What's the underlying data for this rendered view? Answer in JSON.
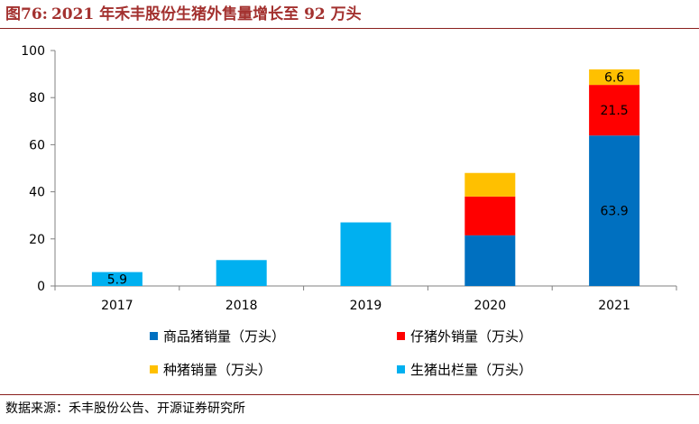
{
  "header": {
    "figure_number": "图76:",
    "title": "2021 年禾丰股份生猪外售量增长至 92 万头"
  },
  "source": "数据来源：禾丰股份公告、开源证券研究所",
  "colors": {
    "commercial": "#0070c0",
    "piglet": "#ff0000",
    "breeding": "#ffc000",
    "total": "#00b0f0",
    "header_accent": "#a3312f"
  },
  "chart_data": {
    "type": "bar",
    "stacked": true,
    "categories": [
      "2017",
      "2018",
      "2019",
      "2020",
      "2021"
    ],
    "ylim": [
      0,
      100
    ],
    "yticks": [
      0,
      20,
      40,
      60,
      80,
      100
    ],
    "series": [
      {
        "key": "total",
        "name": "生猪出栏量（万头）",
        "color": "#00b0f0",
        "values": [
          5.9,
          11,
          27,
          null,
          null
        ]
      },
      {
        "key": "commercial",
        "name": "商品猪销量（万头）",
        "color": "#0070c0",
        "values": [
          null,
          null,
          null,
          21.5,
          63.9
        ]
      },
      {
        "key": "piglet",
        "name": "仔猪外销量（万头）",
        "color": "#ff0000",
        "values": [
          null,
          null,
          null,
          16.5,
          21.5
        ]
      },
      {
        "key": "breeding",
        "name": "种猪销量（万头）",
        "color": "#ffc000",
        "values": [
          null,
          null,
          null,
          10,
          6.6
        ]
      }
    ],
    "data_labels": [
      {
        "category": "2017",
        "series": "total",
        "text": "5.9"
      },
      {
        "category": "2021",
        "series": "commercial",
        "text": "63.9"
      },
      {
        "category": "2021",
        "series": "piglet",
        "text": "21.5"
      },
      {
        "category": "2021",
        "series": "breeding",
        "text": "6.6"
      }
    ],
    "legend_position": "bottom",
    "legend_order": [
      "commercial",
      "piglet",
      "breeding",
      "total"
    ],
    "grid": false
  }
}
